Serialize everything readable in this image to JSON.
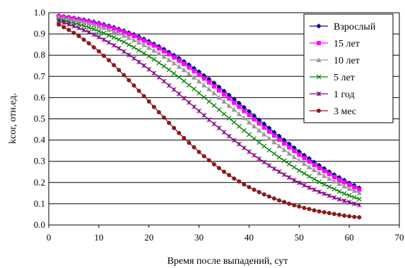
{
  "chart_data": {
    "type": "line",
    "title": "",
    "xlabel": "Время после выпадений, сут",
    "ylabel": "kcor, отн.ед.",
    "xlim": [
      0,
      70
    ],
    "ylim": [
      0,
      1.0
    ],
    "x_ticks": [
      "0",
      "10",
      "20",
      "30",
      "40",
      "50",
      "60",
      "70"
    ],
    "y_ticks": [
      "0.0",
      "0.1",
      "0.2",
      "0.3",
      "0.4",
      "0.5",
      "0.6",
      "0.7",
      "0.8",
      "0.9",
      "1.0"
    ],
    "grid": "horizontal",
    "legend_position": "top-right",
    "x": [
      2,
      3,
      4,
      5,
      6,
      7,
      8,
      9,
      10,
      11,
      12,
      13,
      14,
      15,
      16,
      17,
      18,
      19,
      20,
      21,
      22,
      23,
      24,
      25,
      26,
      27,
      28,
      29,
      30,
      31,
      32,
      33,
      34,
      35,
      36,
      37,
      38,
      39,
      40,
      41,
      42,
      43,
      44,
      45,
      46,
      47,
      48,
      49,
      50,
      51,
      52,
      53,
      54,
      55,
      56,
      57,
      58,
      59,
      60,
      61,
      62
    ],
    "series": [
      {
        "name": "Взрослый",
        "color": "#0a0a8c",
        "marker": "diamond",
        "values": [
          0.985,
          0.982,
          0.979,
          0.975,
          0.971,
          0.967,
          0.962,
          0.957,
          0.951,
          0.945,
          0.938,
          0.931,
          0.923,
          0.915,
          0.906,
          0.897,
          0.887,
          0.876,
          0.865,
          0.853,
          0.841,
          0.828,
          0.814,
          0.8,
          0.786,
          0.77,
          0.755,
          0.738,
          0.722,
          0.704,
          0.687,
          0.669,
          0.65,
          0.631,
          0.612,
          0.593,
          0.574,
          0.554,
          0.535,
          0.515,
          0.495,
          0.476,
          0.457,
          0.437,
          0.419,
          0.4,
          0.382,
          0.364,
          0.346,
          0.329,
          0.313,
          0.296,
          0.281,
          0.266,
          0.251,
          0.237,
          0.224,
          0.211,
          0.198,
          0.187,
          0.175
        ]
      },
      {
        "name": "15 лет",
        "color": "#ff00ff",
        "marker": "square",
        "values": [
          0.984,
          0.98,
          0.976,
          0.972,
          0.968,
          0.963,
          0.958,
          0.952,
          0.946,
          0.94,
          0.933,
          0.925,
          0.917,
          0.909,
          0.899,
          0.89,
          0.879,
          0.868,
          0.857,
          0.845,
          0.832,
          0.818,
          0.804,
          0.789,
          0.774,
          0.758,
          0.742,
          0.725,
          0.708,
          0.69,
          0.672,
          0.653,
          0.634,
          0.615,
          0.596,
          0.576,
          0.557,
          0.537,
          0.518,
          0.498,
          0.478,
          0.459,
          0.44,
          0.421,
          0.402,
          0.384,
          0.366,
          0.349,
          0.331,
          0.315,
          0.299,
          0.283,
          0.268,
          0.254,
          0.24,
          0.226,
          0.213,
          0.201,
          0.189,
          0.178,
          0.167
        ]
      },
      {
        "name": "10 лет",
        "color": "#999999",
        "marker": "triangle",
        "values": [
          0.979,
          0.975,
          0.97,
          0.966,
          0.96,
          0.955,
          0.949,
          0.942,
          0.935,
          0.928,
          0.92,
          0.911,
          0.902,
          0.892,
          0.882,
          0.871,
          0.86,
          0.848,
          0.835,
          0.822,
          0.808,
          0.793,
          0.778,
          0.762,
          0.746,
          0.73,
          0.712,
          0.695,
          0.677,
          0.658,
          0.64,
          0.621,
          0.601,
          0.582,
          0.562,
          0.543,
          0.523,
          0.504,
          0.484,
          0.465,
          0.446,
          0.427,
          0.408,
          0.39,
          0.372,
          0.354,
          0.337,
          0.32,
          0.304,
          0.288,
          0.273,
          0.259,
          0.244,
          0.231,
          0.218,
          0.205,
          0.194,
          0.182,
          0.171,
          0.161,
          0.151
        ]
      },
      {
        "name": "5 лет",
        "color": "#008000",
        "marker": "x",
        "values": [
          0.968,
          0.963,
          0.957,
          0.951,
          0.945,
          0.938,
          0.93,
          0.922,
          0.913,
          0.904,
          0.894,
          0.884,
          0.873,
          0.862,
          0.849,
          0.837,
          0.823,
          0.809,
          0.795,
          0.78,
          0.764,
          0.748,
          0.731,
          0.714,
          0.696,
          0.678,
          0.659,
          0.641,
          0.621,
          0.602,
          0.582,
          0.563,
          0.543,
          0.523,
          0.503,
          0.484,
          0.464,
          0.445,
          0.426,
          0.407,
          0.389,
          0.371,
          0.353,
          0.336,
          0.319,
          0.303,
          0.287,
          0.272,
          0.257,
          0.243,
          0.229,
          0.216,
          0.203,
          0.191,
          0.18,
          0.169,
          0.158,
          0.148,
          0.139,
          0.13,
          0.122
        ]
      },
      {
        "name": "1 год",
        "color": "#800080",
        "marker": "star",
        "values": [
          0.96,
          0.953,
          0.945,
          0.937,
          0.928,
          0.918,
          0.908,
          0.897,
          0.885,
          0.873,
          0.86,
          0.846,
          0.832,
          0.817,
          0.801,
          0.785,
          0.768,
          0.751,
          0.733,
          0.715,
          0.696,
          0.677,
          0.657,
          0.638,
          0.618,
          0.597,
          0.577,
          0.557,
          0.537,
          0.516,
          0.496,
          0.476,
          0.457,
          0.437,
          0.418,
          0.399,
          0.381,
          0.363,
          0.345,
          0.328,
          0.312,
          0.296,
          0.28,
          0.265,
          0.251,
          0.237,
          0.224,
          0.211,
          0.199,
          0.187,
          0.176,
          0.166,
          0.156,
          0.147,
          0.138,
          0.129,
          0.121,
          0.114,
          0.107,
          0.1,
          0.094
        ]
      },
      {
        "name": "3 мес",
        "color": "#8b1a1a",
        "marker": "circle",
        "values": [
          0.944,
          0.932,
          0.919,
          0.905,
          0.89,
          0.873,
          0.856,
          0.837,
          0.818,
          0.797,
          0.776,
          0.753,
          0.73,
          0.706,
          0.682,
          0.657,
          0.632,
          0.607,
          0.582,
          0.556,
          0.531,
          0.506,
          0.481,
          0.457,
          0.433,
          0.41,
          0.387,
          0.366,
          0.344,
          0.324,
          0.305,
          0.286,
          0.268,
          0.251,
          0.235,
          0.219,
          0.205,
          0.191,
          0.178,
          0.166,
          0.155,
          0.144,
          0.134,
          0.125,
          0.116,
          0.108,
          0.1,
          0.093,
          0.087,
          0.08,
          0.075,
          0.069,
          0.064,
          0.06,
          0.056,
          0.052,
          0.048,
          0.044,
          0.041,
          0.038,
          0.036
        ]
      }
    ]
  }
}
